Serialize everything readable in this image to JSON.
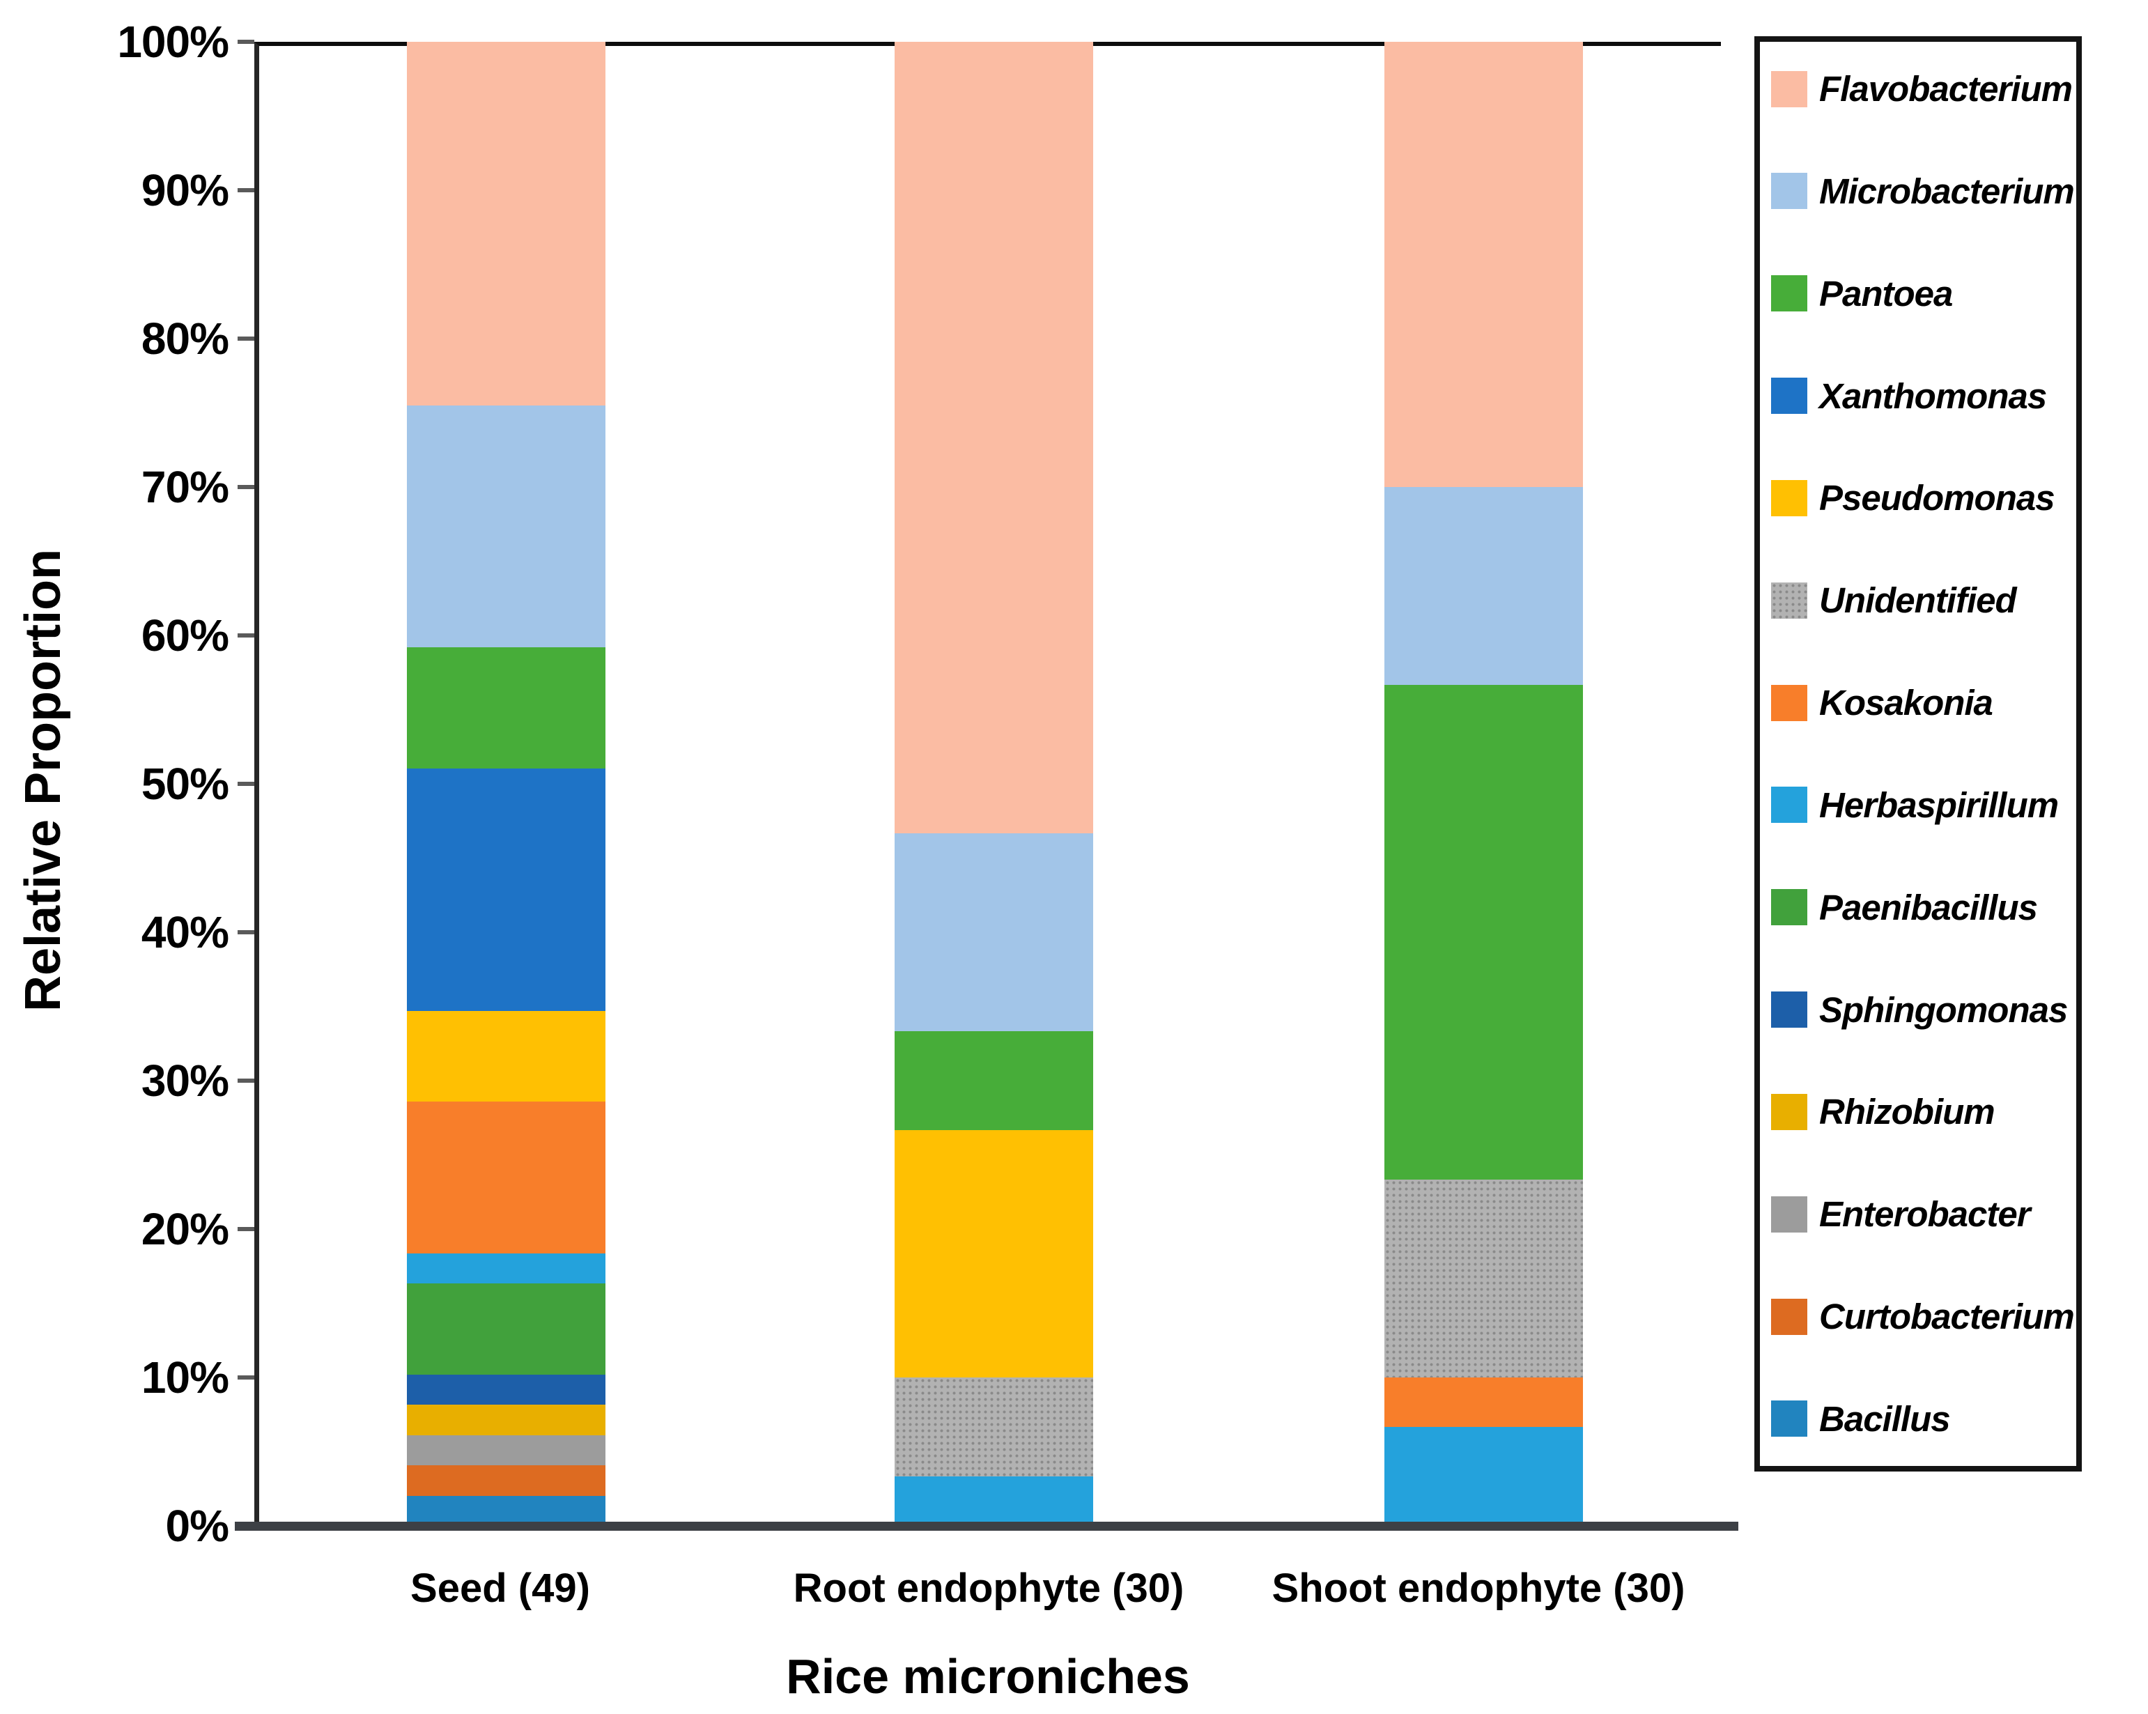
{
  "chart_data": {
    "type": "bar",
    "stacked": true,
    "title": "",
    "xlabel": "Rice microniches",
    "ylabel": "Relative Proportion",
    "categories": [
      "Seed (49)",
      "Root endophyte (30)",
      "Shoot endophyte (30)"
    ],
    "y_ticks": [
      "0%",
      "10%",
      "20%",
      "30%",
      "40%",
      "50%",
      "60%",
      "70%",
      "80%",
      "90%",
      "100%"
    ],
    "ylim": [
      0,
      100
    ],
    "grid": false,
    "legend_position": "right",
    "series_note": "series listed in stacking order bottom-to-top; values are percent of each column",
    "series": [
      {
        "name": "Bacillus",
        "color": "#2184BF",
        "pattern": false,
        "values": [
          2.04,
          0,
          0
        ]
      },
      {
        "name": "Curtobacterium",
        "color": "#DD6B21",
        "pattern": false,
        "values": [
          2.04,
          0,
          0
        ]
      },
      {
        "name": "Enterobacter",
        "color": "#9C9C9C",
        "pattern": false,
        "values": [
          2.04,
          0,
          0
        ]
      },
      {
        "name": "Rhizobium",
        "color": "#E8AF00",
        "pattern": false,
        "values": [
          2.04,
          0,
          0
        ]
      },
      {
        "name": "Sphingomonas",
        "color": "#1D5FA9",
        "pattern": false,
        "values": [
          2.04,
          0,
          0
        ]
      },
      {
        "name": "Paenibacillus",
        "color": "#41A13C",
        "pattern": false,
        "values": [
          6.12,
          0,
          0
        ]
      },
      {
        "name": "Herbaspirillum",
        "color": "#24A2DC",
        "pattern": false,
        "values": [
          2.04,
          3.33,
          6.67
        ]
      },
      {
        "name": "Kosakonia",
        "color": "#F87E2A",
        "pattern": false,
        "values": [
          10.2,
          0,
          3.33
        ]
      },
      {
        "name": "Unidentified",
        "color": "#B2B2B2",
        "pattern": true,
        "values": [
          0,
          6.67,
          13.33
        ]
      },
      {
        "name": "Pseudomonas",
        "color": "#FFC002",
        "pattern": false,
        "values": [
          6.12,
          16.67,
          0
        ]
      },
      {
        "name": "Xanthomonas",
        "color": "#1E73C6",
        "pattern": false,
        "values": [
          16.33,
          0,
          0
        ]
      },
      {
        "name": "Pantoea",
        "color": "#47AD39",
        "pattern": false,
        "values": [
          8.16,
          6.67,
          33.33
        ]
      },
      {
        "name": "Microbacterium",
        "color": "#A2C5E8",
        "pattern": false,
        "values": [
          16.33,
          13.33,
          13.33
        ]
      },
      {
        "name": "Flavobacterium",
        "color": "#FBBCA3",
        "pattern": false,
        "values": [
          24.5,
          53.33,
          30.01
        ]
      }
    ],
    "legend_order_top_to_bottom": [
      "Flavobacterium",
      "Microbacterium",
      "Pantoea",
      "Xanthomonas",
      "Pseudomonas",
      "Unidentified",
      "Kosakonia",
      "Herbaspirillum",
      "Paenibacillus",
      "Sphingomonas",
      "Rhizobium",
      "Enterobacter",
      "Curtobacterium",
      "Bacillus"
    ]
  },
  "axis": {
    "x_title": "Rice microniches",
    "y_title": "Relative Proportion"
  }
}
